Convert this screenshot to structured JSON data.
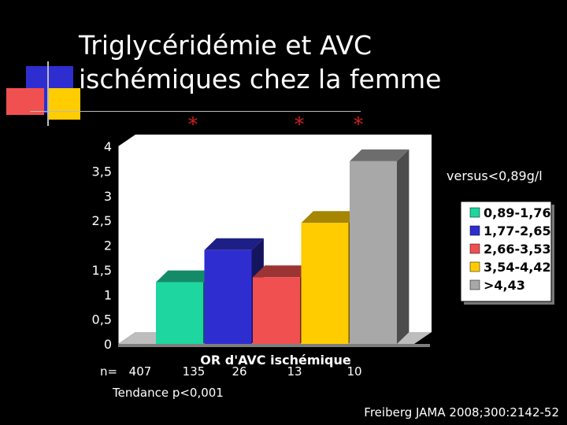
{
  "title_line1": "Triglycéridémie et AVC",
  "title_line2": "ischémiques chez la femme",
  "star": "*",
  "note": "versus<0,89g/l",
  "n_label": "n=",
  "trend": "Tendance p<0,001",
  "source": "Freiberg JAMA 2008;300:2142-52",
  "colors": {
    "bg": "#000000",
    "s1": "#1ED6A0",
    "s2": "#2E2ED0",
    "s3": "#F05050",
    "s4": "#FFCC00",
    "s5": "#A8A8A8"
  },
  "chart_data": {
    "type": "bar",
    "categories": [
      "0,89-1,76",
      "1,77-2,65",
      "2,66-3,53",
      "3,54-4,42",
      ">4,43"
    ],
    "values": [
      1.25,
      1.9,
      1.35,
      2.45,
      3.7
    ],
    "counts": [
      "407",
      "135",
      "26",
      "13",
      "10"
    ],
    "significant": [
      false,
      false,
      true,
      true,
      true
    ],
    "xlabel": "OR d'AVC ischémique",
    "ylabel": "",
    "ylim": [
      0,
      4
    ],
    "yticks": [
      "0",
      "0,5",
      "1",
      "1,5",
      "2",
      "2,5",
      "3",
      "3,5",
      "4"
    ],
    "legend": [
      "0,89-1,76",
      "1,77-2,65",
      "2,66-3,53",
      "3,54-4,42",
      ">4,43"
    ],
    "legend_position": "right",
    "grid": false
  }
}
